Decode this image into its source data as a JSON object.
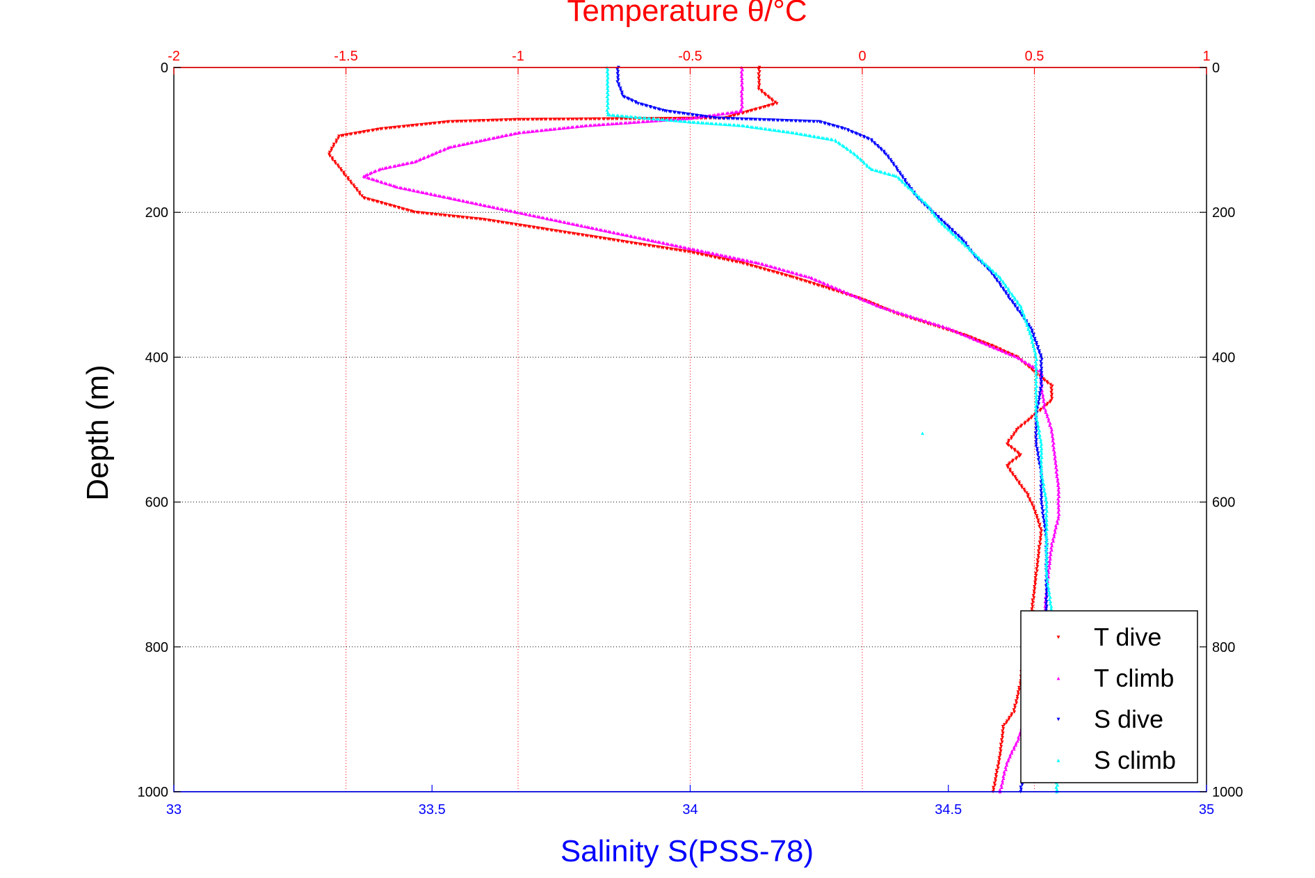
{
  "chart_data": {
    "type": "scatter",
    "title": "",
    "axes": {
      "top": {
        "label": "Temperature θ/°C",
        "range": [
          -2,
          1
        ],
        "ticks": [
          "-2",
          "-1.5",
          "-1",
          "-0.5",
          "0",
          "0.5",
          "1"
        ],
        "color": "#ff0000"
      },
      "bottom": {
        "label": "Salinity S(PSS-78)",
        "range": [
          33,
          35
        ],
        "ticks": [
          "33",
          "33.5",
          "34",
          "34.5",
          "35"
        ],
        "color": "#0000ff"
      },
      "left": {
        "label": "Depth (m)",
        "range": [
          0,
          1000
        ],
        "inverted": true,
        "ticks": [
          "0",
          "200",
          "400",
          "600",
          "800",
          "1000"
        ],
        "color": "#000000"
      },
      "right": {
        "range": [
          0,
          1000
        ],
        "inverted": true,
        "ticks": [
          "0",
          "200",
          "400",
          "600",
          "800",
          "1000"
        ],
        "color": "#000000"
      }
    },
    "grid": true,
    "legend_position": "bottom-right",
    "series": [
      {
        "name": "T dive",
        "axis": "temperature",
        "color": "#ff0000",
        "marker": "triangle-down",
        "points": [
          [
            -0.3,
            0
          ],
          [
            -0.3,
            30
          ],
          [
            -0.25,
            50
          ],
          [
            -0.4,
            70
          ],
          [
            -1.0,
            72
          ],
          [
            -1.2,
            75
          ],
          [
            -1.4,
            85
          ],
          [
            -1.52,
            95
          ],
          [
            -1.55,
            120
          ],
          [
            -1.5,
            150
          ],
          [
            -1.45,
            180
          ],
          [
            -1.3,
            200
          ],
          [
            -1.1,
            210
          ],
          [
            -0.9,
            225
          ],
          [
            -0.7,
            240
          ],
          [
            -0.5,
            255
          ],
          [
            -0.35,
            270
          ],
          [
            -0.2,
            290
          ],
          [
            -0.1,
            305
          ],
          [
            0.0,
            320
          ],
          [
            0.1,
            340
          ],
          [
            0.2,
            355
          ],
          [
            0.3,
            370
          ],
          [
            0.38,
            385
          ],
          [
            0.45,
            400
          ],
          [
            0.5,
            420
          ],
          [
            0.55,
            440
          ],
          [
            0.55,
            460
          ],
          [
            0.5,
            480
          ],
          [
            0.45,
            500
          ],
          [
            0.42,
            520
          ],
          [
            0.46,
            535
          ],
          [
            0.42,
            550
          ],
          [
            0.45,
            570
          ],
          [
            0.48,
            590
          ],
          [
            0.5,
            610
          ],
          [
            0.52,
            640
          ],
          [
            0.51,
            680
          ],
          [
            0.5,
            720
          ],
          [
            0.49,
            760
          ],
          [
            0.47,
            800
          ],
          [
            0.46,
            850
          ],
          [
            0.44,
            890
          ],
          [
            0.41,
            910
          ],
          [
            0.4,
            950
          ],
          [
            0.38,
            1000
          ]
        ]
      },
      {
        "name": "T climb",
        "axis": "temperature",
        "color": "#ff00ff",
        "marker": "triangle-up",
        "points": [
          [
            -0.35,
            0
          ],
          [
            -0.35,
            30
          ],
          [
            -0.35,
            60
          ],
          [
            -0.5,
            70
          ],
          [
            -0.8,
            80
          ],
          [
            -1.0,
            90
          ],
          [
            -1.2,
            110
          ],
          [
            -1.3,
            130
          ],
          [
            -1.4,
            140
          ],
          [
            -1.45,
            150
          ],
          [
            -1.35,
            165
          ],
          [
            -1.2,
            180
          ],
          [
            -1.0,
            200
          ],
          [
            -0.8,
            220
          ],
          [
            -0.6,
            240
          ],
          [
            -0.45,
            255
          ],
          [
            -0.3,
            270
          ],
          [
            -0.15,
            290
          ],
          [
            -0.05,
            310
          ],
          [
            0.05,
            330
          ],
          [
            0.15,
            345
          ],
          [
            0.25,
            360
          ],
          [
            0.35,
            380
          ],
          [
            0.45,
            400
          ],
          [
            0.52,
            420
          ],
          [
            0.52,
            440
          ],
          [
            0.53,
            470
          ],
          [
            0.55,
            500
          ],
          [
            0.56,
            540
          ],
          [
            0.57,
            580
          ],
          [
            0.57,
            620
          ],
          [
            0.55,
            660
          ],
          [
            0.54,
            700
          ],
          [
            0.53,
            750
          ],
          [
            0.53,
            800
          ],
          [
            0.5,
            850
          ],
          [
            0.48,
            890
          ],
          [
            0.45,
            930
          ],
          [
            0.42,
            960
          ],
          [
            0.4,
            1000
          ]
        ]
      },
      {
        "name": "S dive",
        "axis": "salinity",
        "color": "#0000ff",
        "marker": "triangle-down",
        "points": [
          [
            33.86,
            0
          ],
          [
            33.86,
            20
          ],
          [
            33.87,
            40
          ],
          [
            33.9,
            50
          ],
          [
            33.95,
            60
          ],
          [
            34.05,
            70
          ],
          [
            34.25,
            75
          ],
          [
            34.3,
            85
          ],
          [
            34.35,
            100
          ],
          [
            34.38,
            120
          ],
          [
            34.4,
            140
          ],
          [
            34.42,
            160
          ],
          [
            34.44,
            180
          ],
          [
            34.47,
            200
          ],
          [
            34.5,
            220
          ],
          [
            34.53,
            240
          ],
          [
            34.55,
            260
          ],
          [
            34.58,
            280
          ],
          [
            34.6,
            300
          ],
          [
            34.62,
            320
          ],
          [
            34.64,
            340
          ],
          [
            34.66,
            360
          ],
          [
            34.67,
            380
          ],
          [
            34.68,
            400
          ],
          [
            34.68,
            440
          ],
          [
            34.67,
            480
          ],
          [
            34.67,
            520
          ],
          [
            34.68,
            560
          ],
          [
            34.68,
            600
          ],
          [
            34.69,
            650
          ],
          [
            34.69,
            700
          ],
          [
            34.69,
            750
          ],
          [
            34.68,
            800
          ],
          [
            34.67,
            850
          ],
          [
            34.66,
            900
          ],
          [
            34.65,
            950
          ],
          [
            34.64,
            1000
          ]
        ]
      },
      {
        "name": "S climb",
        "axis": "salinity",
        "color": "#00ffff",
        "marker": "triangle-up",
        "points": [
          [
            33.84,
            0
          ],
          [
            33.84,
            20
          ],
          [
            33.84,
            40
          ],
          [
            33.84,
            65
          ],
          [
            34.0,
            75
          ],
          [
            34.1,
            80
          ],
          [
            34.2,
            90
          ],
          [
            34.28,
            100
          ],
          [
            34.32,
            120
          ],
          [
            34.35,
            140
          ],
          [
            34.4,
            150
          ],
          [
            34.43,
            170
          ],
          [
            34.46,
            190
          ],
          [
            34.48,
            210
          ],
          [
            34.51,
            230
          ],
          [
            34.54,
            250
          ],
          [
            34.57,
            270
          ],
          [
            34.6,
            290
          ],
          [
            34.62,
            310
          ],
          [
            34.64,
            330
          ],
          [
            34.65,
            350
          ],
          [
            34.66,
            370
          ],
          [
            34.67,
            400
          ],
          [
            34.67,
            440
          ],
          [
            34.67,
            480
          ],
          [
            34.68,
            520
          ],
          [
            34.68,
            560
          ],
          [
            34.69,
            600
          ],
          [
            34.69,
            650
          ],
          [
            34.69,
            700
          ],
          [
            34.7,
            750
          ],
          [
            34.7,
            800
          ],
          [
            34.7,
            850
          ],
          [
            34.7,
            900
          ],
          [
            34.71,
            950
          ],
          [
            34.71,
            1000
          ],
          [
            34.45,
            505
          ]
        ]
      }
    ]
  }
}
